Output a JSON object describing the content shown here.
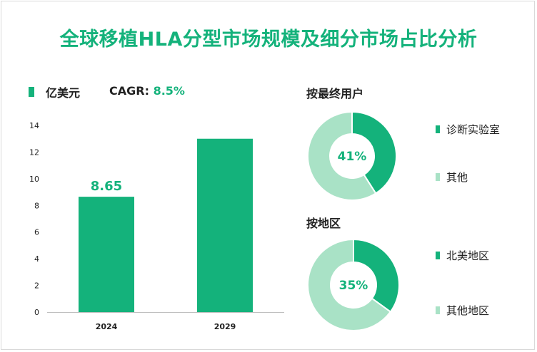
{
  "colors": {
    "primary": "#14b27b",
    "light": "#a9e2c6"
  },
  "title": "全球移植HLA分型市场规模及细分市场占比分析",
  "legend": {
    "unit": "亿美元"
  },
  "cagr": {
    "label": "CAGR:",
    "value": "8.5%"
  },
  "chart_data": [
    {
      "type": "bar",
      "categories": [
        "2024",
        "2029"
      ],
      "values": [
        8.65,
        13
      ],
      "data_labels": [
        "8.65",
        ""
      ],
      "ylim": [
        0,
        14
      ],
      "yticks": [
        0,
        2,
        4,
        6,
        8,
        10,
        12,
        14
      ],
      "ytick_labels": [
        "0",
        "2",
        "4",
        "6",
        "8",
        "10",
        "12",
        "14"
      ],
      "grid": false,
      "legend": "亿美元"
    },
    {
      "type": "pie",
      "title": "按最终用户",
      "labels": [
        "诊断实验室",
        "其他"
      ],
      "values": [
        41,
        59
      ],
      "center_label": "41%"
    },
    {
      "type": "pie",
      "title": "按地区",
      "labels": [
        "北美地区",
        "其他地区"
      ],
      "values": [
        35,
        65
      ],
      "center_label": "35%"
    }
  ]
}
